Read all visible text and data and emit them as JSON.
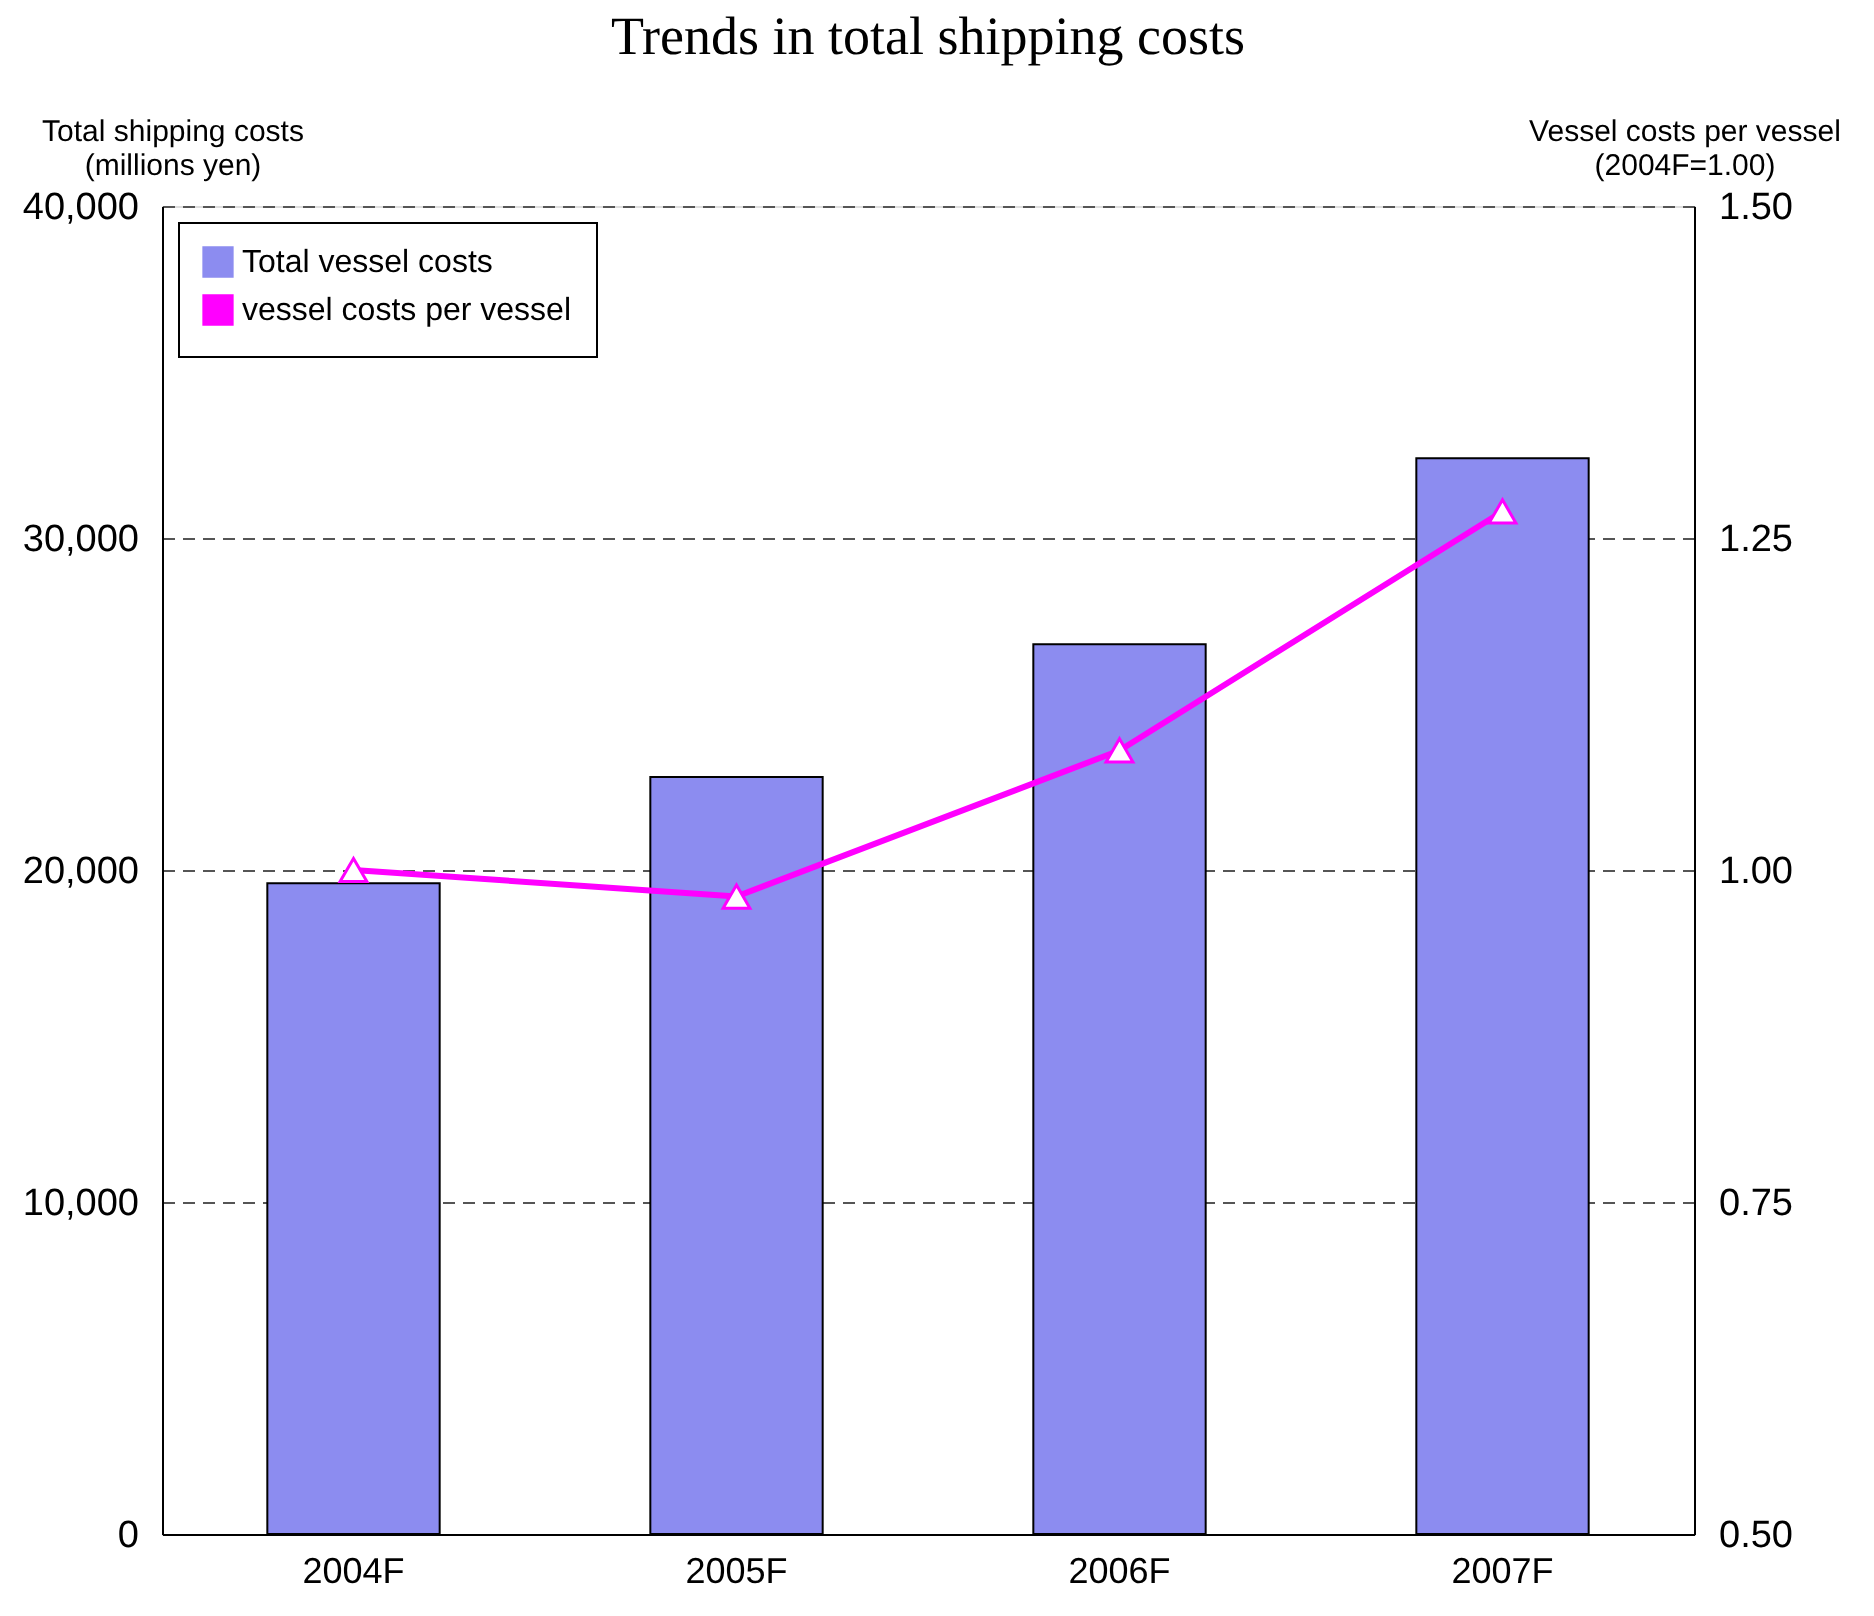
{
  "chart_data": {
    "type": "bar",
    "title": "Trends in total shipping costs",
    "ylabel": "Total shipping costs\n(millions yen)",
    "y2label": "Vessel costs per vessel\n(2004F=1.00)",
    "categories": [
      "2004F",
      "2005F",
      "2006F",
      "2007F"
    ],
    "series": [
      {
        "name": "Total vessel  costs",
        "color": "#8c8cf0",
        "values": [
          19600,
          22800,
          26800,
          32400
        ]
      },
      {
        "name": "vessel costs per vessel",
        "type": "line",
        "axis": "y2",
        "color": "#ff00ff",
        "marker": "triangle",
        "values": [
          1.0,
          0.98,
          1.09,
          1.27
        ]
      }
    ],
    "ylim": [
      0,
      40000
    ],
    "yticks": [
      {
        "value": 0,
        "label": "0"
      },
      {
        "value": 10000,
        "label": "10,000"
      },
      {
        "value": 20000,
        "label": "20,000"
      },
      {
        "value": 30000,
        "label": "30,000"
      },
      {
        "value": 40000,
        "label": "40,000"
      }
    ],
    "y2lim": [
      0.5,
      1.5
    ],
    "y2ticks": [
      {
        "value": 0.5,
        "label": "0.50"
      },
      {
        "value": 0.75,
        "label": "0.75"
      },
      {
        "value": 1.0,
        "label": "1.00"
      },
      {
        "value": 1.25,
        "label": "1.25"
      },
      {
        "value": 1.5,
        "label": "1.50"
      }
    ],
    "grid": "y",
    "legend": "top left"
  }
}
